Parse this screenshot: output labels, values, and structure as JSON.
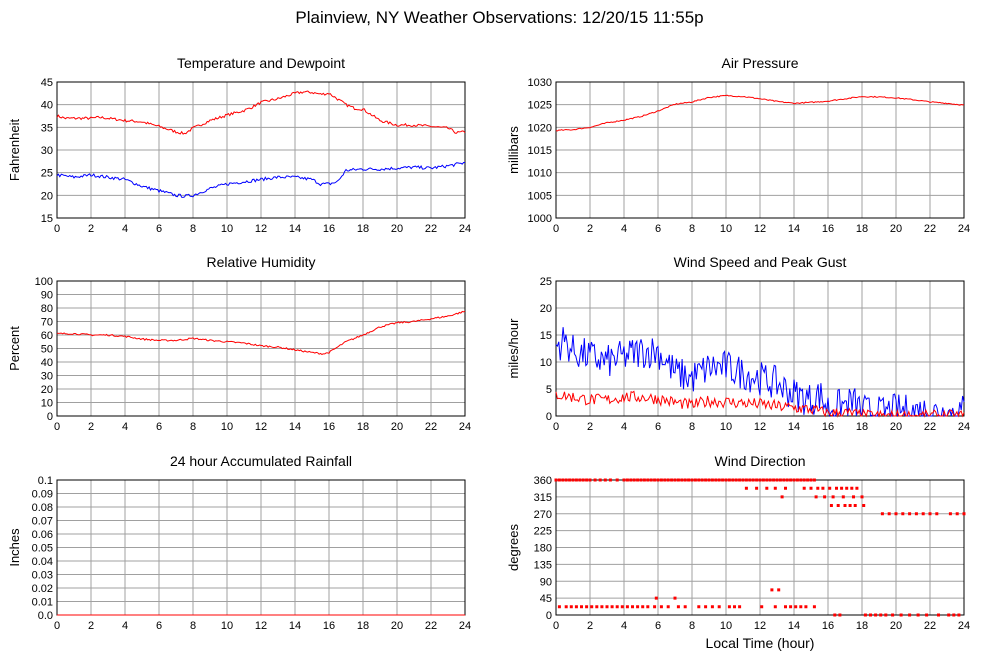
{
  "page": {
    "title": "Plainview, NY Weather Observations: 12/20/15 11:55p",
    "xaxis_title": "Local Time (hour)"
  },
  "colors": {
    "red": "#ff0000",
    "blue": "#0000ff",
    "grid": "#a0a0a0"
  },
  "chart_data": [
    {
      "id": "temp",
      "type": "line",
      "title": "Temperature and Dewpoint",
      "ylabel": "Fahrenheit",
      "xlim": [
        0,
        24
      ],
      "ylim": [
        15,
        45
      ],
      "xticks": [
        0,
        2,
        4,
        6,
        8,
        10,
        12,
        14,
        16,
        18,
        20,
        22,
        24
      ],
      "yticks": [
        15,
        20,
        25,
        30,
        35,
        40,
        45
      ],
      "grid": true,
      "series": [
        {
          "color": "#ff0000",
          "noise": 0.3,
          "x": [
            0,
            0.5,
            1,
            2,
            2.5,
            3,
            4,
            5,
            6,
            7,
            7.5,
            8,
            9,
            10,
            11,
            11.5,
            12,
            13,
            14,
            14.5,
            15,
            15.5,
            16,
            17,
            17.5,
            18,
            19,
            20,
            21,
            22,
            23,
            23.5,
            24
          ],
          "y": [
            37.5,
            37,
            37,
            37,
            37.2,
            37,
            36.5,
            36.2,
            35.2,
            34,
            33.6,
            34.8,
            36.5,
            37.7,
            38.7,
            39.5,
            40.5,
            41.3,
            42.5,
            42.8,
            42.7,
            42.3,
            42.5,
            40,
            39.2,
            39,
            36.5,
            35.5,
            35.5,
            35.2,
            34.8,
            33.8,
            34
          ]
        },
        {
          "color": "#0000ff",
          "noise": 0.35,
          "x": [
            0,
            1,
            2,
            3,
            4,
            5,
            6,
            7,
            7.5,
            8,
            9,
            10,
            11,
            12,
            13,
            14,
            15,
            15.5,
            16,
            16.5,
            17,
            18,
            19,
            20,
            21,
            22,
            23,
            24
          ],
          "y": [
            24.5,
            24,
            24.5,
            24,
            23.5,
            22,
            21,
            20,
            19.8,
            20,
            21.5,
            22.5,
            23,
            23.5,
            24,
            24,
            23.5,
            22.5,
            22.5,
            23,
            25.5,
            25.8,
            25.8,
            26,
            26.2,
            26,
            26.5,
            27.2
          ]
        }
      ]
    },
    {
      "id": "pressure",
      "type": "line",
      "title": "Air Pressure",
      "ylabel": "millibars",
      "xlim": [
        0,
        24
      ],
      "ylim": [
        1000,
        1030
      ],
      "xticks": [
        0,
        2,
        4,
        6,
        8,
        10,
        12,
        14,
        16,
        18,
        20,
        22,
        24
      ],
      "yticks": [
        1000,
        1005,
        1010,
        1015,
        1020,
        1025,
        1030
      ],
      "grid": true,
      "series": [
        {
          "color": "#ff0000",
          "noise": 0.12,
          "x": [
            0,
            1,
            2,
            3,
            4,
            5,
            6,
            7,
            8,
            9,
            10,
            11,
            12,
            13,
            14,
            15,
            16,
            17,
            18,
            19,
            20,
            21,
            22,
            23,
            24
          ],
          "y": [
            1019.3,
            1019.5,
            1020,
            1021,
            1021.6,
            1022.4,
            1023.6,
            1025.1,
            1025.6,
            1026.6,
            1027,
            1026.8,
            1026.3,
            1025.7,
            1025.3,
            1025.5,
            1025.8,
            1026.3,
            1026.8,
            1026.7,
            1026.5,
            1026.1,
            1025.6,
            1025.3,
            1024.9
          ]
        }
      ]
    },
    {
      "id": "humidity",
      "type": "line",
      "title": "Relative Humidity",
      "ylabel": "Percent",
      "xlim": [
        0,
        24
      ],
      "ylim": [
        0,
        100
      ],
      "xticks": [
        0,
        2,
        4,
        6,
        8,
        10,
        12,
        14,
        16,
        18,
        20,
        22,
        24
      ],
      "yticks": [
        0,
        10,
        20,
        30,
        40,
        50,
        60,
        70,
        80,
        90,
        100
      ],
      "grid": true,
      "series": [
        {
          "color": "#ff0000",
          "noise": 0.6,
          "x": [
            0,
            1,
            2,
            3,
            4,
            5,
            6,
            7,
            8,
            9,
            10,
            11,
            12,
            13,
            14,
            15,
            15.7,
            16,
            17,
            18,
            19,
            20,
            21,
            22,
            23,
            24
          ],
          "y": [
            61,
            61,
            60,
            60,
            59,
            57,
            56,
            56,
            57.5,
            56,
            55,
            54,
            52,
            51,
            49,
            47,
            46,
            47,
            55,
            60,
            66,
            69,
            70,
            72,
            74,
            77.5
          ]
        }
      ]
    },
    {
      "id": "wind",
      "type": "line",
      "title": "Wind Speed and Peak Gust",
      "ylabel": "miles/hour",
      "xlim": [
        0,
        24
      ],
      "ylim": [
        0,
        25
      ],
      "xticks": [
        0,
        2,
        4,
        6,
        8,
        10,
        12,
        14,
        16,
        18,
        20,
        22,
        24
      ],
      "yticks": [
        0,
        5,
        10,
        15,
        20,
        25
      ],
      "grid": true,
      "series": [
        {
          "color": "#0000ff",
          "noise": 3.2,
          "x": [
            0,
            0.5,
            1,
            2,
            3,
            4,
            5,
            6,
            6.5,
            7,
            8,
            9,
            10,
            11,
            12,
            13,
            14,
            15,
            15.5,
            16,
            17,
            17.5,
            18,
            19,
            20,
            21,
            22,
            23,
            24
          ],
          "y": [
            13,
            14,
            12,
            11,
            10,
            11,
            12,
            12,
            10,
            8,
            7,
            9,
            9,
            8,
            7,
            6,
            4,
            3,
            4,
            1.5,
            2,
            2.5,
            1,
            0.5,
            1,
            0.8,
            0.8,
            0.5,
            1
          ]
        },
        {
          "color": "#ff0000",
          "noise": 1.1,
          "x": [
            0,
            1,
            2,
            3,
            4,
            5,
            6,
            7,
            8,
            9,
            10,
            11,
            12,
            13,
            14,
            15,
            16,
            17,
            18,
            19,
            20,
            21,
            22,
            23,
            24
          ],
          "y": [
            4,
            3.5,
            3,
            3,
            3.5,
            3.5,
            3.2,
            2.5,
            2,
            2.8,
            2.6,
            2.4,
            2.2,
            1.8,
            1.5,
            1.2,
            0.5,
            0.6,
            0.1,
            0,
            0,
            0,
            0,
            0,
            0
          ]
        }
      ]
    },
    {
      "id": "rain",
      "type": "line",
      "title": "24 hour Accumulated Rainfall",
      "ylabel": "Inches",
      "xlim": [
        0,
        24
      ],
      "ylim": [
        0,
        0.1
      ],
      "xticks": [
        0,
        2,
        4,
        6,
        8,
        10,
        12,
        14,
        16,
        18,
        20,
        22,
        24
      ],
      "yticks": [
        0.0,
        0.01,
        0.02,
        0.03,
        0.04,
        0.05,
        0.06,
        0.07,
        0.08,
        0.09,
        0.1
      ],
      "ytick_labels": [
        "0.0",
        "0.01",
        "0.02",
        "0.03",
        "0.04",
        "0.05",
        "0.06",
        "0.07",
        "0.08",
        "0.09",
        "0.1"
      ],
      "grid": true,
      "series": [
        {
          "color": "#ff0000",
          "noise": 0,
          "x": [
            0,
            24
          ],
          "y": [
            0,
            0
          ]
        }
      ]
    },
    {
      "id": "winddir",
      "type": "scatter",
      "title": "Wind Direction",
      "ylabel": "degrees",
      "xlim": [
        0,
        24
      ],
      "ylim": [
        0,
        360
      ],
      "xticks": [
        0,
        2,
        4,
        6,
        8,
        10,
        12,
        14,
        16,
        18,
        20,
        22,
        24
      ],
      "yticks": [
        0,
        45,
        90,
        135,
        180,
        225,
        270,
        315,
        360
      ],
      "grid": true,
      "series": [
        {
          "color": "#ff0000",
          "x": [
            0.0,
            0.2,
            0.4,
            0.6,
            0.8,
            1.0,
            1.2,
            1.4,
            1.6,
            1.8,
            2.0,
            2.3,
            2.6,
            2.9,
            3.2,
            3.6,
            4.0,
            4.2,
            4.4,
            4.6,
            4.8,
            5.0,
            5.2,
            5.4,
            5.6,
            5.8,
            6.0,
            6.2,
            6.4,
            6.6,
            6.8,
            7.0,
            7.2,
            7.4,
            7.6,
            7.8,
            8.0,
            8.2,
            8.4,
            8.6,
            8.8,
            9.0,
            9.2,
            9.4,
            9.6,
            9.8,
            10.0,
            10.2,
            10.4,
            10.6,
            10.8,
            11.0,
            11.2,
            11.4,
            11.6,
            11.8,
            12.0,
            12.2,
            12.4,
            12.6,
            12.8,
            13.0,
            13.2,
            13.4,
            13.6,
            13.8,
            14.0,
            14.2,
            14.4,
            14.6,
            14.8,
            15.0,
            15.2,
            11.2,
            11.8,
            12.4,
            12.9,
            13.5,
            14.6,
            15.0,
            15.4,
            15.7,
            16.1,
            16.5,
            16.8,
            17.1,
            17.4,
            17.7,
            13.3,
            15.3,
            15.8,
            16.3,
            16.9,
            17.5,
            18.0,
            16.2,
            16.6,
            17.0,
            17.3,
            17.6,
            18.1,
            19.2,
            19.6,
            20.0,
            20.4,
            20.8,
            21.2,
            21.6,
            22.0,
            22.4,
            23.2,
            23.6,
            24.0,
            0.2,
            0.6,
            0.9,
            1.2,
            1.5,
            1.8,
            2.1,
            2.4,
            2.7,
            3.0,
            3.3,
            3.6,
            3.9,
            4.2,
            4.5,
            4.8,
            5.1,
            5.4,
            5.8,
            6.2,
            6.6,
            7.2,
            7.6,
            8.4,
            8.8,
            9.2,
            9.6,
            10.2,
            10.5,
            10.8,
            12.1,
            12.9,
            13.5,
            13.8,
            14.1,
            14.4,
            14.7,
            15.2,
            13.1,
            16.4,
            16.7,
            18.2,
            18.5,
            18.8,
            19.1,
            19.4,
            19.8,
            20.3,
            20.8,
            21.3,
            21.8,
            22.5,
            23.1,
            23.4,
            23.7,
            5.9,
            7.0,
            12.7
          ],
          "y": [
            360,
            360,
            360,
            360,
            360,
            360,
            360,
            360,
            360,
            360,
            360,
            360,
            360,
            360,
            360,
            360,
            360,
            360,
            360,
            360,
            360,
            360,
            360,
            360,
            360,
            360,
            360,
            360,
            360,
            360,
            360,
            360,
            360,
            360,
            360,
            360,
            360,
            360,
            360,
            360,
            360,
            360,
            360,
            360,
            360,
            360,
            360,
            360,
            360,
            360,
            360,
            360,
            360,
            360,
            360,
            360,
            360,
            360,
            360,
            360,
            360,
            360,
            360,
            360,
            360,
            360,
            360,
            360,
            360,
            360,
            360,
            360,
            360,
            338,
            338,
            338,
            338,
            338,
            338,
            338,
            338,
            338,
            338,
            338,
            338,
            338,
            338,
            338,
            315,
            315,
            315,
            315,
            315,
            315,
            315,
            292,
            292,
            292,
            292,
            292,
            292,
            270,
            270,
            270,
            270,
            270,
            270,
            270,
            270,
            270,
            270,
            270,
            270,
            22,
            22,
            22,
            22,
            22,
            22,
            22,
            22,
            22,
            22,
            22,
            22,
            22,
            22,
            22,
            22,
            22,
            22,
            22,
            22,
            22,
            22,
            22,
            22,
            22,
            22,
            22,
            22,
            22,
            22,
            22,
            22,
            22,
            22,
            22,
            22,
            22,
            22,
            67,
            0,
            0,
            0,
            0,
            0,
            0,
            0,
            0,
            0,
            0,
            0,
            0,
            0,
            0,
            0,
            0,
            45,
            45,
            67
          ]
        }
      ]
    }
  ]
}
